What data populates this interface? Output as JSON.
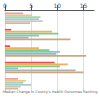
{
  "chart_data": {
    "type": "bar",
    "orientation": "horizontal",
    "title": "Median Change in County's Health Outcomes Ranking",
    "categories": [
      null,
      null,
      null,
      null,
      null
    ],
    "series": [
      {
        "values": [
          3.5,
          1.2,
          1.0,
          9.5,
          2.5
        ],
        "colors": [
          "#e8a0a0",
          "#e05050",
          "#e05050",
          "#e05050",
          "#e8a0a0"
        ]
      },
      {
        "values": [
          5.2,
          9.0,
          6.5,
          12.0,
          4.0
        ],
        "colors": [
          "#f0c090",
          "#f0b060",
          "#f0b060",
          "#f0b060",
          "#f0c090"
        ]
      },
      {
        "values": [
          6.8,
          10.2,
          8.5,
          10.5,
          3.5
        ],
        "colors": [
          "#a8d8a8",
          "#80cc80",
          "#80cc80",
          "#80cc80",
          "#a8d8a8"
        ]
      },
      {
        "values": [
          6.5,
          6.5,
          10.5,
          2.5,
          5.0
        ],
        "colors": [
          "#a0d0d0",
          "#80c8c8",
          "#80c8c8",
          "#80c8c8",
          "#a0d0d0"
        ]
      },
      {
        "values": [
          7.2,
          4.5,
          9.8,
          13.5,
          3.0
        ],
        "colors": [
          "#c8c8c8",
          "#b0b0b0",
          "#b0b0b0",
          "#b0b0b0",
          "#c8c8c8"
        ]
      },
      {
        "values": [
          4.8,
          12.5,
          15.5,
          15.0,
          2.5
        ],
        "colors": [
          "#d4b898",
          "#c8a880",
          "#c8a880",
          "#c8a880",
          "#d4b898"
        ]
      }
    ],
    "xlim": [
      0,
      17
    ],
    "xticks": [
      0,
      5,
      10,
      15
    ],
    "grid": true,
    "tick_labels": "x"
  }
}
